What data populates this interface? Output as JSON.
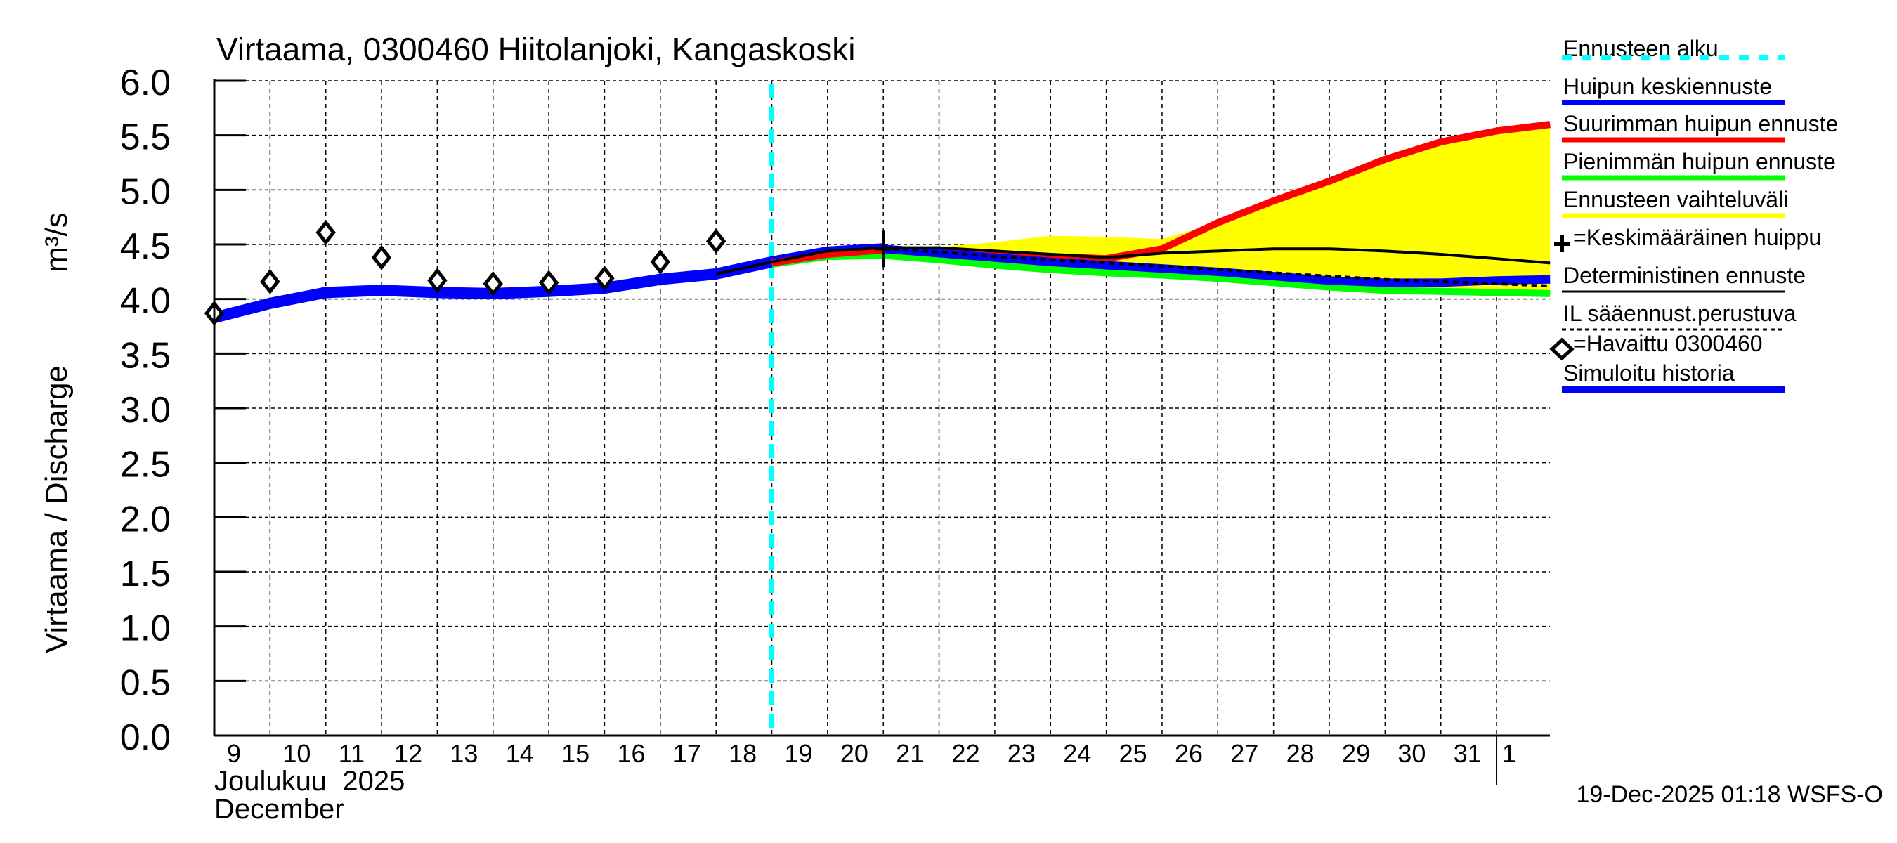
{
  "chart_data": {
    "type": "line",
    "title": "Virtaama, 0300460 Hiitolanjoki, Kangaskoski",
    "ylabel": "Virtaama / Discharge",
    "yunit": "m³/s",
    "ylim": [
      0.0,
      6.0
    ],
    "yticks": [
      "0.0",
      "0.5",
      "1.0",
      "1.5",
      "2.0",
      "2.5",
      "3.0",
      "3.5",
      "4.0",
      "4.5",
      "5.0",
      "5.5",
      "6.0"
    ],
    "xlim_day_index": [
      0,
      23.96
    ],
    "xtick_labels": [
      "9",
      "10",
      "11",
      "12",
      "13",
      "14",
      "15",
      "16",
      "17",
      "18",
      "19",
      "20",
      "21",
      "22",
      "23",
      "24",
      "25",
      "26",
      "27",
      "28",
      "29",
      "30",
      "31",
      "1"
    ],
    "x_month_label_fi": "Joulukuu  2025",
    "x_month_label_en": "December",
    "grid": true,
    "forecast_start_day_index": 10.0,
    "footer": "19-Dec-2025 01:18 WSFS-O",
    "colors": {
      "forecast_start": "#00ffff",
      "mean": "#0000ff",
      "max": "#ff0000",
      "min": "#00ff00",
      "range": "#ffff00",
      "deterministic": "#000000",
      "history": "#0000ff"
    },
    "legend": [
      {
        "label": "Ennusteen alku",
        "style": "cyan-dashed"
      },
      {
        "label": "Huipun keskiennuste",
        "style": "blue"
      },
      {
        "label": "Suurimman huipun ennuste",
        "style": "red"
      },
      {
        "label": "Pienimmän huipun ennuste",
        "style": "green"
      },
      {
        "label": "Ennusteen vaihteluväli",
        "style": "yellow"
      },
      {
        "label": "=Keskimääräinen huippu",
        "style": "plus-marker"
      },
      {
        "label": "Deterministinen ennuste",
        "style": "black"
      },
      {
        "label": "IL sääennust.perustuva",
        "style": "black-dashed"
      },
      {
        "label": "=Havaittu 0300460",
        "style": "diamond-marker"
      },
      {
        "label": "Simuloitu historia",
        "style": "blue-thick"
      }
    ],
    "series": [
      {
        "name": "Simuloitu historia",
        "x": [
          0,
          1,
          2,
          3,
          4,
          5,
          6,
          7,
          8,
          9,
          10,
          11,
          12
        ],
        "y": [
          3.83,
          3.96,
          4.06,
          4.08,
          4.06,
          4.05,
          4.07,
          4.1,
          4.18,
          4.23,
          4.34,
          4.43,
          4.46
        ]
      },
      {
        "name": "Havaittu 0300460",
        "x": [
          0,
          1,
          2,
          3,
          4,
          5,
          6,
          7,
          8,
          9
        ],
        "y": [
          3.87,
          4.16,
          4.61,
          4.38,
          4.17,
          4.14,
          4.15,
          4.19,
          4.34,
          4.53
        ]
      },
      {
        "name": "Huipun keskiennuste",
        "x": [
          12,
          13,
          14,
          15,
          16,
          17,
          18,
          19,
          20,
          21,
          22,
          23,
          23.96
        ],
        "y": [
          4.46,
          4.42,
          4.38,
          4.34,
          4.31,
          4.28,
          4.25,
          4.21,
          4.17,
          4.15,
          4.15,
          4.17,
          4.18
        ]
      },
      {
        "name": "Suurimman huipun ennuste",
        "x": [
          10,
          11,
          12,
          13,
          14,
          15,
          16,
          17,
          18,
          19,
          20,
          21,
          22,
          23,
          23.96
        ],
        "y": [
          4.33,
          4.41,
          4.45,
          4.44,
          4.42,
          4.39,
          4.37,
          4.46,
          4.7,
          4.9,
          5.08,
          5.28,
          5.44,
          5.54,
          5.6
        ]
      },
      {
        "name": "Pienimmän huipun ennuste",
        "x": [
          10,
          11,
          12,
          13,
          14,
          15,
          16,
          17,
          18,
          19,
          20,
          21,
          22,
          23,
          23.96
        ],
        "y": [
          4.32,
          4.39,
          4.4,
          4.36,
          4.31,
          4.27,
          4.24,
          4.22,
          4.19,
          4.15,
          4.11,
          4.08,
          4.07,
          4.06,
          4.05
        ]
      },
      {
        "name": "Ennusteen vaihteluväli ylä",
        "x": [
          10,
          11,
          12,
          13,
          14,
          15,
          16,
          17,
          18,
          19,
          20,
          21,
          22,
          23,
          23.96
        ],
        "y": [
          4.33,
          4.42,
          4.47,
          4.48,
          4.52,
          4.58,
          4.57,
          4.55,
          4.7,
          4.9,
          5.08,
          5.28,
          5.44,
          5.54,
          5.6
        ]
      },
      {
        "name": "Deterministinen ennuste",
        "x": [
          9,
          10,
          11,
          12,
          13,
          14,
          15,
          16,
          17,
          18,
          19,
          20,
          21,
          22,
          23,
          23.96
        ],
        "y": [
          4.23,
          4.34,
          4.44,
          4.47,
          4.47,
          4.44,
          4.41,
          4.38,
          4.42,
          4.44,
          4.46,
          4.46,
          4.44,
          4.41,
          4.37,
          4.33
        ]
      },
      {
        "name": "IL sääennust.perustuva",
        "x": [
          12,
          13,
          14,
          15,
          16,
          17,
          18,
          19,
          20,
          21,
          22,
          23,
          23.96
        ],
        "y": [
          4.46,
          4.43,
          4.39,
          4.36,
          4.33,
          4.3,
          4.27,
          4.24,
          4.21,
          4.18,
          4.16,
          4.14,
          4.12
        ]
      },
      {
        "name": "Keskimääräinen huippu",
        "x": [
          12
        ],
        "y": [
          4.46
        ]
      }
    ]
  }
}
